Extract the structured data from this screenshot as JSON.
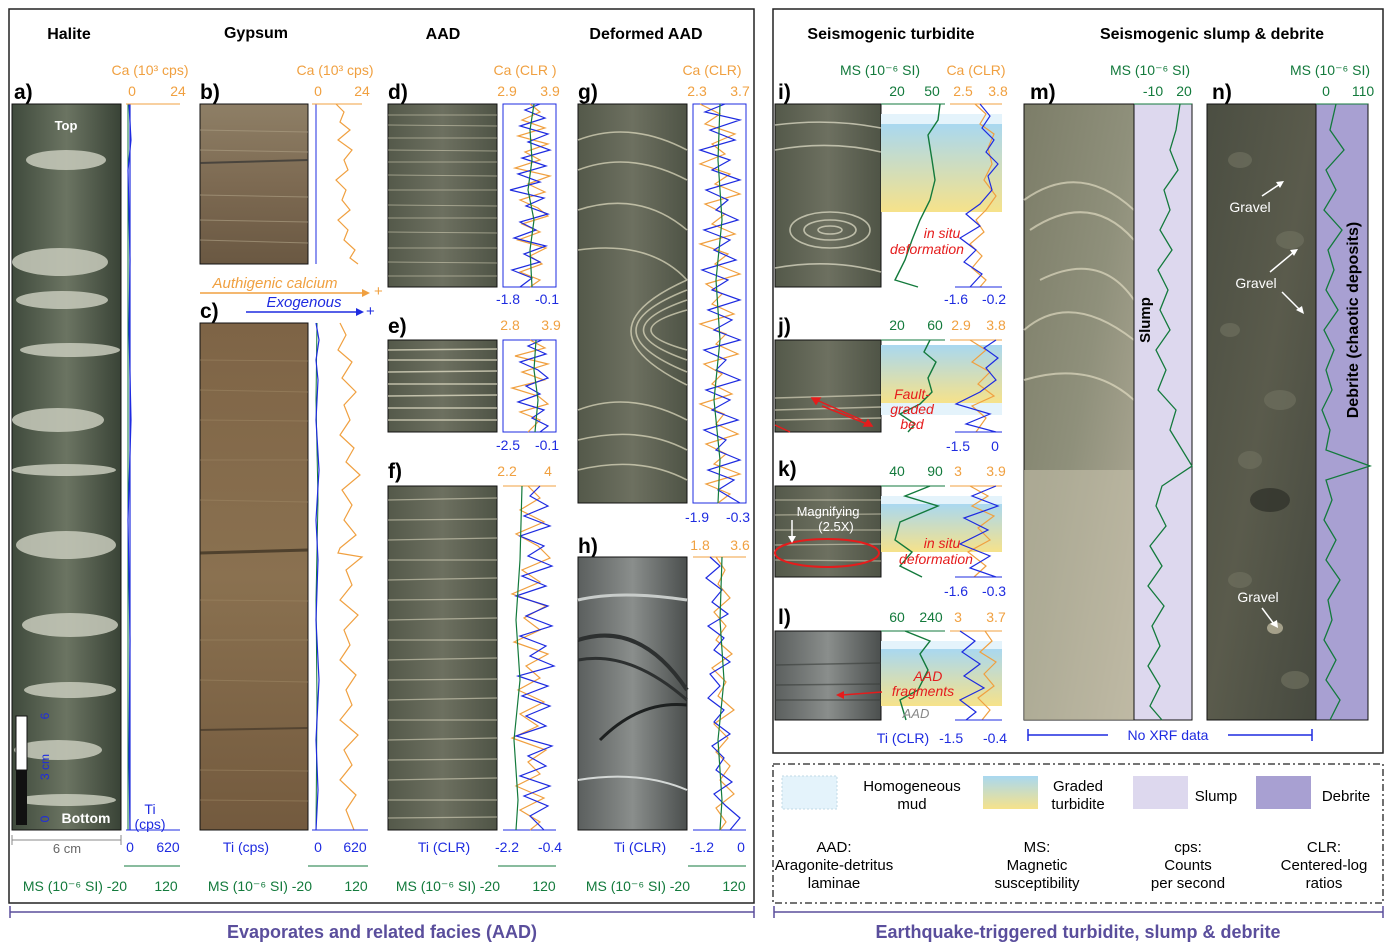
{
  "colors": {
    "ca": "#f0a040",
    "ti": "#1e2be0",
    "ms": "#137a3c",
    "red": "#e51c1c",
    "bottom_label": "#5a4e9c",
    "homogeneous_mud": "#e4f3fb",
    "graded_top": "#a9d8f0",
    "graded_bottom": "#f6e28a",
    "slump": "#ddd8ee",
    "debrite": "#a8a0d2"
  },
  "left_box": {
    "headers": {
      "halite": "Halite",
      "gypsum": "Gypsum",
      "aad": "AAD",
      "deformed_aad": "Deformed AAD"
    },
    "panel_a": {
      "letter": "a)",
      "top_label": "Top",
      "bottom_label": "Bottom",
      "ca_title": "Ca (10³ cps)",
      "ca_min": "0",
      "ca_max": "24",
      "ti_title": "Ti",
      "ti_unit": "(cps)",
      "ti_min": "0",
      "ti_max": "620",
      "ms_title": "MS (10⁻⁶ SI)",
      "ms_min": "-20",
      "ms_max": "120",
      "scale_6": "6",
      "scale_3cm": "3 cm",
      "scale_0": "0",
      "width_label": "6 cm"
    },
    "panel_b": {
      "letter": "b)",
      "ca_title": "Ca (10³ cps)",
      "ca_min": "0",
      "ca_max": "24"
    },
    "panel_c": {
      "letter": "c)",
      "ti_title": "Ti (cps)",
      "ti_min": "0",
      "ti_max": "620",
      "ms_title": "MS (10⁻⁶ SI)",
      "ms_min": "-20",
      "ms_max": "120"
    },
    "arrows": {
      "authigenic": "Authigenic calcium",
      "exogenous": "Exogenous",
      "plus": "+"
    },
    "panel_d": {
      "letter": "d)",
      "ca_title": "Ca (CLR )",
      "ca_min": "2.9",
      "ca_max": "3.9",
      "ti_min": "-1.8",
      "ti_max": "-0.1"
    },
    "panel_e": {
      "letter": "e)",
      "ca_min": "2.8",
      "ca_max": "3.9",
      "ti_min": "-2.5",
      "ti_max": "-0.1"
    },
    "panel_f": {
      "letter": "f)",
      "ca_min": "2.2",
      "ca_max": "4",
      "ti_title": "Ti (CLR)",
      "ti_min": "-2.2",
      "ti_max": "-0.4",
      "ms_title": "MS (10⁻⁶ SI)",
      "ms_min": "-20",
      "ms_max": "120"
    },
    "panel_g": {
      "letter": "g)",
      "ca_title": "Ca (CLR)",
      "ca_min": "2.3",
      "ca_max": "3.7",
      "ti_min": "-1.9",
      "ti_max": "-0.3"
    },
    "panel_h": {
      "letter": "h)",
      "ca_min": "1.8",
      "ca_max": "3.6",
      "ti_title": "Ti (CLR)",
      "ti_min": "-1.2",
      "ti_max": "0",
      "ms_title": "MS (10⁻⁶ SI)",
      "ms_min": "-20",
      "ms_max": "120"
    },
    "bottom_caption": "Evaporates and related facies (AAD)"
  },
  "right_box": {
    "headers": {
      "turbidite": "Seismogenic turbidite",
      "slump_debrite": "Seismogenic slump & debrite"
    },
    "panel_i": {
      "letter": "i)",
      "ms_title": "MS (10⁻⁶ SI)",
      "ca_title": "Ca (CLR)",
      "ms_min": "20",
      "ms_max": "50",
      "ca_min": "2.5",
      "ca_max": "3.8",
      "ti_min": "-1.6",
      "ti_max": "-0.2",
      "note1": "in situ",
      "note2": "deformation"
    },
    "panel_j": {
      "letter": "j)",
      "ms_min": "20",
      "ms_max": "60",
      "ca_min": "2.9",
      "ca_max": "3.8",
      "ti_min": "-1.5",
      "ti_max": "0",
      "note1": "Fault-",
      "note2": "graded",
      "note3": "bed"
    },
    "panel_k": {
      "letter": "k)",
      "ms_min": "40",
      "ms_max": "90",
      "ca_min": "3",
      "ca_max": "3.9",
      "ti_min": "-1.6",
      "ti_max": "-0.3",
      "magnify1": "Magnifying",
      "magnify2": "(2.5X)",
      "note1": "in situ",
      "note2": "deformation"
    },
    "panel_l": {
      "letter": "l)",
      "ms_min": "60",
      "ms_max": "240",
      "ca_min": "3",
      "ca_max": "3.7",
      "ti_title": "Ti (CLR)",
      "ti_min": "-1.5",
      "ti_max": "-0.4",
      "note1": "AAD",
      "note2": "fragments",
      "aad_label": "AAD"
    },
    "panel_m": {
      "letter": "m)",
      "ms_title": "MS (10⁻⁶ SI)",
      "ms_min": "-10",
      "ms_max": "20",
      "band_label": "Slump"
    },
    "panel_n": {
      "letter": "n)",
      "ms_title": "MS (10⁻⁶ SI)",
      "ms_min": "0",
      "ms_max": "110",
      "band_label": "Debrite (chaotic deposits)",
      "gravel1": "Gravel",
      "gravel2": "Gravel",
      "gravel3": "Gravel"
    },
    "no_xrf": "No XRF data"
  },
  "legend": {
    "homogeneous_mud": [
      "Homogeneous",
      "mud"
    ],
    "graded_turbidite": [
      "Graded",
      "turbidite"
    ],
    "slump": "Slump",
    "debrite": "Debrite",
    "aad_def": [
      "AAD:",
      "Aragonite-detritus",
      "laminae"
    ],
    "ms_def": [
      "MS:",
      "Magnetic",
      "susceptibility"
    ],
    "cps_def": [
      "cps:",
      "Counts",
      "per second"
    ],
    "clr_def": [
      "CLR:",
      "Centered-log",
      "ratios"
    ]
  },
  "bottom_caption_right": "Earthquake-triggered turbidite, slump & debrite"
}
